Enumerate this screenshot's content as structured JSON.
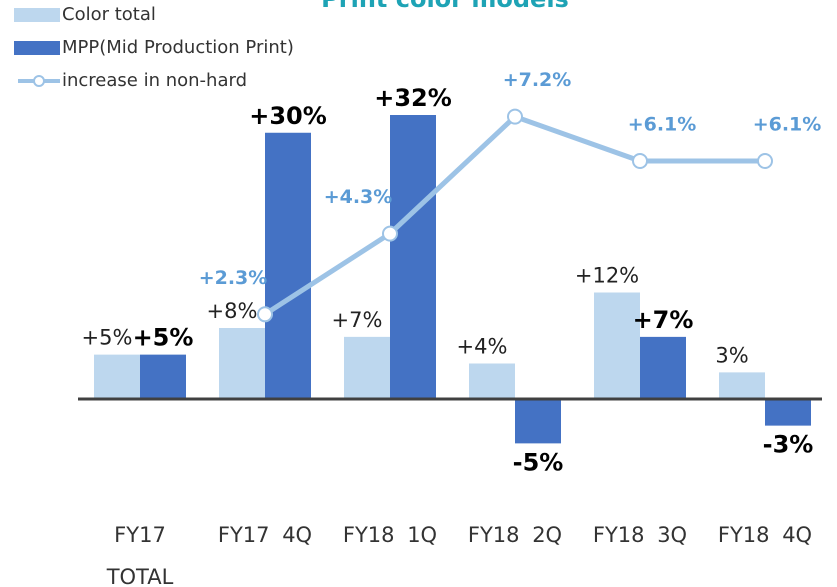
{
  "chart_data": {
    "type": "bar",
    "title": "Print color models",
    "categories": [
      "FY17 TOTAL",
      "FY17 4Q",
      "FY18 1Q",
      "FY18 2Q",
      "FY18 3Q",
      "FY18 4Q"
    ],
    "series": [
      {
        "name": "Color total",
        "color": "#bdd7ee",
        "type": "bar",
        "values": [
          5,
          8,
          7,
          4,
          12,
          3
        ],
        "value_labels": [
          "+5%",
          "+8%",
          "+7%",
          "+4%",
          "+12%",
          "3%"
        ]
      },
      {
        "name": "MPP(Mid Production Print)",
        "color": "#4472c4",
        "type": "bar",
        "values": [
          5,
          30,
          32,
          -5,
          7,
          -3
        ],
        "value_labels": [
          "+5%",
          "+30%",
          "+32%",
          "-5%",
          "+7%",
          "-3%"
        ]
      },
      {
        "name": "increase in non-hard",
        "color": "#9dc3e6",
        "type": "line",
        "axis": "y2",
        "values": [
          null,
          2.3,
          4.3,
          7.2,
          6.1,
          6.1
        ],
        "value_labels": [
          null,
          "+2.3%",
          "+4.3%",
          "+7.2%",
          "+6.1%",
          "+6.1%"
        ]
      }
    ],
    "ylim": [
      -10,
      40
    ],
    "y2lim": [
      -2,
      9
    ],
    "title_color": "#1ea3b5",
    "line_label_color": "#5b9bd5"
  }
}
